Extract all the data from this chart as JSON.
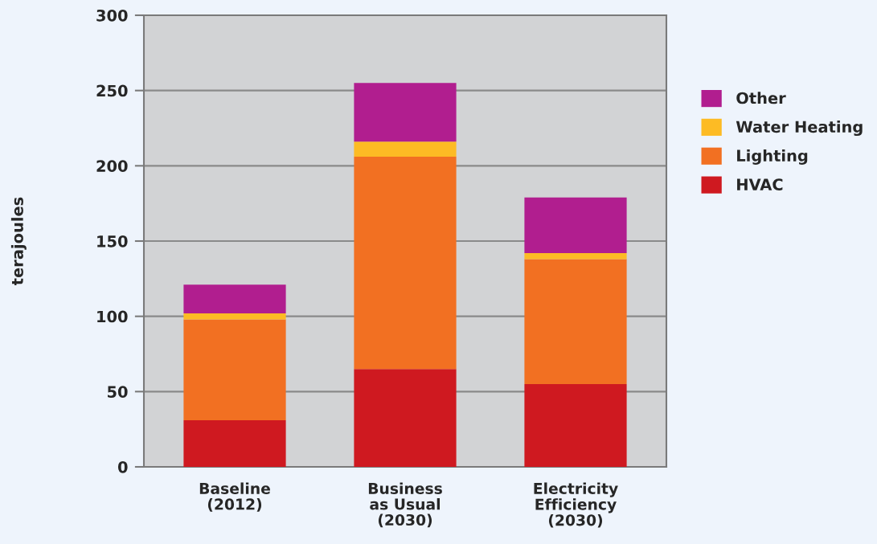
{
  "chart_data": {
    "type": "bar",
    "stacked": true,
    "ylabel": "terajoules",
    "categories": [
      "Baseline\n(2012)",
      "Business\nas Usual\n(2030)",
      "Electricity\nEfficiency\n(2030)"
    ],
    "series": [
      {
        "name": "HVAC",
        "color": "#cf1920",
        "values": [
          31,
          65,
          55
        ]
      },
      {
        "name": "Lighting",
        "color": "#f27022",
        "values": [
          67,
          141,
          83
        ]
      },
      {
        "name": "Water Heating",
        "color": "#fdbb24",
        "values": [
          4,
          10,
          4
        ]
      },
      {
        "name": "Other",
        "color": "#b11e8f",
        "values": [
          19,
          39,
          37
        ]
      }
    ],
    "ylim": [
      0,
      300
    ],
    "yticks": [
      0,
      50,
      100,
      150,
      200,
      250,
      300
    ],
    "grid": "y",
    "legend": "right"
  }
}
